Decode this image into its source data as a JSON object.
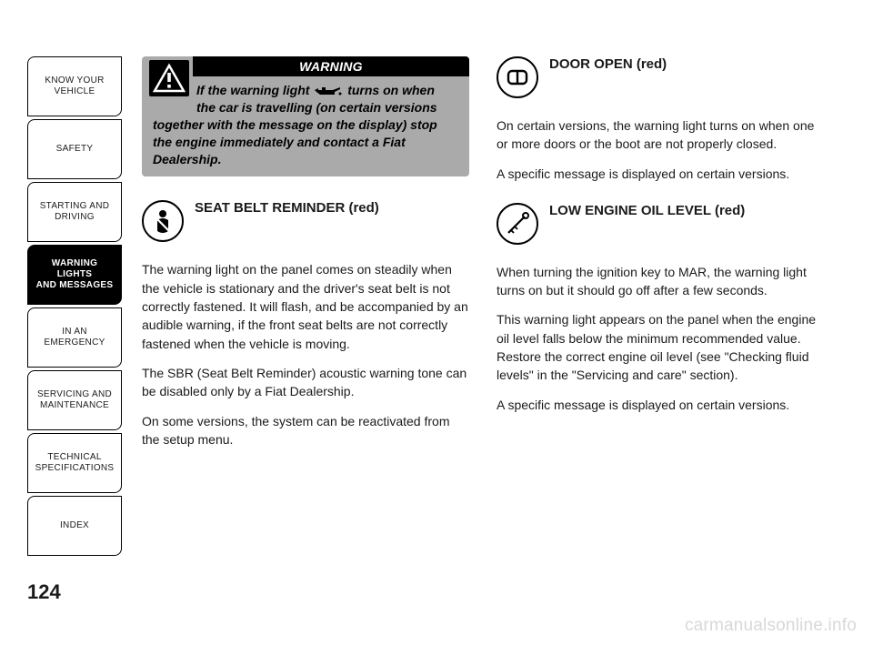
{
  "sidebar": {
    "tabs": [
      {
        "label": "KNOW YOUR\nVEHICLE",
        "active": false
      },
      {
        "label": "SAFETY",
        "active": false
      },
      {
        "label": "STARTING AND\nDRIVING",
        "active": false
      },
      {
        "label": "WARNING LIGHTS\nAND MESSAGES",
        "active": true
      },
      {
        "label": "IN AN EMERGENCY",
        "active": false
      },
      {
        "label": "SERVICING AND\nMAINTENANCE",
        "active": false
      },
      {
        "label": "TECHNICAL\nSPECIFICATIONS",
        "active": false
      },
      {
        "label": "INDEX",
        "active": false
      }
    ]
  },
  "page_number": "124",
  "warning": {
    "header": "WARNING",
    "line1_a": "If the warning light ",
    "line1_b": " turns on when",
    "line2": "the car is travelling (on certain versions",
    "rest": "together with the message on the display) stop the engine immediately and contact a Fiat Dealership."
  },
  "left": {
    "seatbelt": {
      "title": "SEAT BELT REMINDER (red)",
      "p1": "The warning light on the panel comes on steadily when the vehicle is stationary and the driver's seat belt is not correctly fastened. It will flash, and be accompanied by an audible warning, if the front seat belts are not correctly fastened when the vehicle is moving.",
      "p2": "The SBR (Seat Belt Reminder) acoustic warning tone can be disabled only by a Fiat Dealership.",
      "p3": "On some versions, the system can be reactivated from the setup menu."
    }
  },
  "right": {
    "door": {
      "title": "DOOR OPEN (red)",
      "p1": "On certain versions, the warning light turns on when one or more doors or the boot are not properly closed.",
      "p2": "A specific message is displayed on certain versions."
    },
    "oil": {
      "title": "LOW ENGINE OIL LEVEL (red)",
      "p1": "When turning the ignition key to MAR, the warning light turns on but it should go off after a few seconds.",
      "p2": "This warning light appears on the panel when the engine oil level falls below the minimum recommended value. Restore the correct engine oil level (see \"Checking fluid levels\" in the \"Servicing and care\" section).",
      "p3": "A specific message is displayed on certain versions."
    }
  },
  "watermark": "carmanualsonline.info",
  "colors": {
    "text": "#1a1a1a",
    "warning_bg": "#aaaaaa",
    "watermark": "#d8d8d8"
  }
}
